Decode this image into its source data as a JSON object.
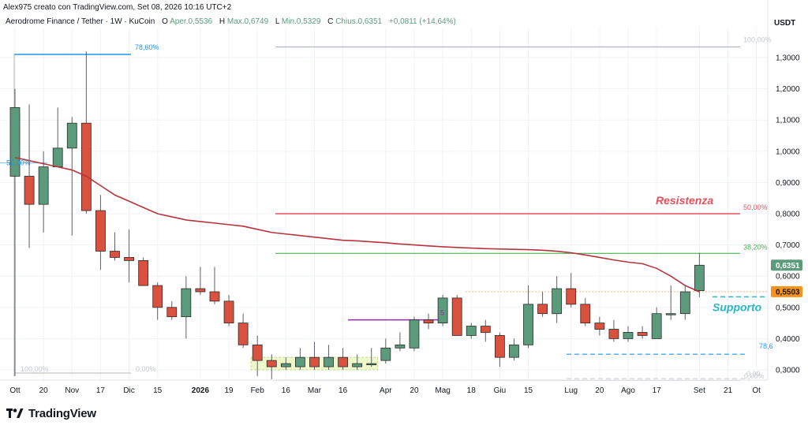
{
  "header": {
    "author_line": "Alex975 creato con TradingView.com, Set 08, 2026 10:16 UTC+2",
    "symbol_line": "Aerodrome Finance / Tether · 1W · KuCoin",
    "ohlc": {
      "o_label": "O",
      "o_value": "Aper.0,5536",
      "h_label": "H",
      "h_value": "Max.0,6749",
      "l_label": "L",
      "l_value": "Min.0,5329",
      "c_label": "C",
      "c_value": "Chius.0,6351",
      "change": "+0,0811 (+14,64%)"
    },
    "currency": "USDT"
  },
  "logo": {
    "text": "TradingView",
    "icon": "tradingview-logo-icon"
  },
  "colors": {
    "up": "#5b9b7c",
    "down": "#d9513f",
    "ma": "#b7343d",
    "resistance": "#e8505b",
    "support_text": "#2ab6c5",
    "fib_green": "#4caf50",
    "fib_blue": "#2196f3",
    "price_badge": "#5b9b7c",
    "level_badge": "#f7931a"
  },
  "chart_data": {
    "type": "candlestick",
    "y_axis": {
      "min": 0.27,
      "max": 1.375,
      "ticks": [
        "1,3000",
        "1,2000",
        "1,1000",
        "1,0000",
        "0,9000",
        "0,8000",
        "0,7000",
        "0,6000",
        "0,5000",
        "0,4000",
        "0,3000"
      ],
      "tick_values": [
        1.3,
        1.2,
        1.1,
        1.0,
        0.9,
        0.8,
        0.7,
        0.6,
        0.5,
        0.4,
        0.3
      ]
    },
    "x_axis": {
      "labels": [
        {
          "text": "Ott",
          "week": 0,
          "bold": false
        },
        {
          "text": "20",
          "week": 2,
          "bold": false
        },
        {
          "text": "Nov",
          "week": 4,
          "bold": false
        },
        {
          "text": "17",
          "week": 6,
          "bold": false
        },
        {
          "text": "Dic",
          "week": 8,
          "bold": false
        },
        {
          "text": "15",
          "week": 10,
          "bold": false
        },
        {
          "text": "2026",
          "week": 13,
          "bold": true
        },
        {
          "text": "19",
          "week": 15,
          "bold": false
        },
        {
          "text": "Feb",
          "week": 17,
          "bold": false
        },
        {
          "text": "16",
          "week": 19,
          "bold": false
        },
        {
          "text": "Mar",
          "week": 21,
          "bold": false
        },
        {
          "text": "16",
          "week": 23,
          "bold": false
        },
        {
          "text": "Apr",
          "week": 26,
          "bold": false
        },
        {
          "text": "20",
          "week": 28,
          "bold": false
        },
        {
          "text": "Mag",
          "week": 30,
          "bold": false
        },
        {
          "text": "18",
          "week": 32,
          "bold": false
        },
        {
          "text": "Giu",
          "week": 34,
          "bold": false
        },
        {
          "text": "15",
          "week": 36,
          "bold": false
        },
        {
          "text": "Lug",
          "week": 39,
          "bold": false
        },
        {
          "text": "20",
          "week": 41,
          "bold": false
        },
        {
          "text": "Ago",
          "week": 43,
          "bold": false
        },
        {
          "text": "17",
          "week": 45,
          "bold": false
        },
        {
          "text": "Set",
          "week": 48,
          "bold": false
        },
        {
          "text": "21",
          "week": 50,
          "bold": false
        },
        {
          "text": "Ot",
          "week": 52,
          "bold": false
        }
      ]
    },
    "candles": [
      {
        "o": 0.92,
        "h": 1.2,
        "l": 0.28,
        "c": 1.14
      },
      {
        "o": 0.92,
        "h": 1.15,
        "l": 0.69,
        "c": 0.83
      },
      {
        "o": 0.83,
        "h": 1.0,
        "l": 0.74,
        "c": 0.95
      },
      {
        "o": 0.95,
        "h": 1.14,
        "l": 0.95,
        "c": 1.01
      },
      {
        "o": 1.01,
        "h": 1.11,
        "l": 0.73,
        "c": 1.09
      },
      {
        "o": 1.09,
        "h": 1.32,
        "l": 0.8,
        "c": 0.81
      },
      {
        "o": 0.81,
        "h": 0.86,
        "l": 0.62,
        "c": 0.68
      },
      {
        "o": 0.68,
        "h": 0.74,
        "l": 0.65,
        "c": 0.66
      },
      {
        "o": 0.66,
        "h": 0.75,
        "l": 0.58,
        "c": 0.65
      },
      {
        "o": 0.65,
        "h": 0.66,
        "l": 0.57,
        "c": 0.57
      },
      {
        "o": 0.57,
        "h": 0.58,
        "l": 0.46,
        "c": 0.5
      },
      {
        "o": 0.5,
        "h": 0.52,
        "l": 0.46,
        "c": 0.47
      },
      {
        "o": 0.47,
        "h": 0.6,
        "l": 0.4,
        "c": 0.56
      },
      {
        "o": 0.56,
        "h": 0.63,
        "l": 0.54,
        "c": 0.55
      },
      {
        "o": 0.55,
        "h": 0.63,
        "l": 0.51,
        "c": 0.52
      },
      {
        "o": 0.52,
        "h": 0.54,
        "l": 0.44,
        "c": 0.45
      },
      {
        "o": 0.45,
        "h": 0.48,
        "l": 0.37,
        "c": 0.38
      },
      {
        "o": 0.38,
        "h": 0.41,
        "l": 0.28,
        "c": 0.33
      },
      {
        "o": 0.33,
        "h": 0.35,
        "l": 0.27,
        "c": 0.31
      },
      {
        "o": 0.31,
        "h": 0.34,
        "l": 0.3,
        "c": 0.32
      },
      {
        "o": 0.31,
        "h": 0.37,
        "l": 0.3,
        "c": 0.34
      },
      {
        "o": 0.34,
        "h": 0.39,
        "l": 0.3,
        "c": 0.31
      },
      {
        "o": 0.31,
        "h": 0.38,
        "l": 0.3,
        "c": 0.34
      },
      {
        "o": 0.34,
        "h": 0.37,
        "l": 0.3,
        "c": 0.31
      },
      {
        "o": 0.31,
        "h": 0.35,
        "l": 0.3,
        "c": 0.32
      },
      {
        "o": 0.32,
        "h": 0.37,
        "l": 0.31,
        "c": 0.32
      },
      {
        "o": 0.33,
        "h": 0.4,
        "l": 0.32,
        "c": 0.37
      },
      {
        "o": 0.37,
        "h": 0.42,
        "l": 0.36,
        "c": 0.38
      },
      {
        "o": 0.37,
        "h": 0.47,
        "l": 0.36,
        "c": 0.46
      },
      {
        "o": 0.46,
        "h": 0.48,
        "l": 0.43,
        "c": 0.45
      },
      {
        "o": 0.45,
        "h": 0.54,
        "l": 0.44,
        "c": 0.53
      },
      {
        "o": 0.53,
        "h": 0.54,
        "l": 0.41,
        "c": 0.41
      },
      {
        "o": 0.41,
        "h": 0.45,
        "l": 0.4,
        "c": 0.44
      },
      {
        "o": 0.44,
        "h": 0.46,
        "l": 0.39,
        "c": 0.42
      },
      {
        "o": 0.41,
        "h": 0.42,
        "l": 0.31,
        "c": 0.34
      },
      {
        "o": 0.34,
        "h": 0.4,
        "l": 0.33,
        "c": 0.38
      },
      {
        "o": 0.38,
        "h": 0.57,
        "l": 0.37,
        "c": 0.51
      },
      {
        "o": 0.51,
        "h": 0.55,
        "l": 0.47,
        "c": 0.48
      },
      {
        "o": 0.48,
        "h": 0.6,
        "l": 0.45,
        "c": 0.56
      },
      {
        "o": 0.56,
        "h": 0.61,
        "l": 0.5,
        "c": 0.51
      },
      {
        "o": 0.51,
        "h": 0.53,
        "l": 0.44,
        "c": 0.45
      },
      {
        "o": 0.45,
        "h": 0.47,
        "l": 0.41,
        "c": 0.43
      },
      {
        "o": 0.43,
        "h": 0.46,
        "l": 0.39,
        "c": 0.4
      },
      {
        "o": 0.4,
        "h": 0.44,
        "l": 0.39,
        "c": 0.42
      },
      {
        "o": 0.42,
        "h": 0.44,
        "l": 0.4,
        "c": 0.41
      },
      {
        "o": 0.4,
        "h": 0.5,
        "l": 0.4,
        "c": 0.48
      },
      {
        "o": 0.48,
        "h": 0.57,
        "l": 0.46,
        "c": 0.48
      },
      {
        "o": 0.48,
        "h": 0.57,
        "l": 0.46,
        "c": 0.55
      },
      {
        "o": 0.5536,
        "h": 0.6749,
        "l": 0.5329,
        "c": 0.6351
      }
    ],
    "moving_average": [
      0.98,
      0.97,
      0.96,
      0.95,
      0.94,
      0.92,
      0.89,
      0.86,
      0.84,
      0.82,
      0.8,
      0.79,
      0.78,
      0.775,
      0.77,
      0.765,
      0.76,
      0.75,
      0.74,
      0.735,
      0.73,
      0.725,
      0.72,
      0.715,
      0.713,
      0.71,
      0.707,
      0.703,
      0.7,
      0.697,
      0.694,
      0.692,
      0.69,
      0.688,
      0.687,
      0.686,
      0.685,
      0.683,
      0.68,
      0.675,
      0.668,
      0.66,
      0.652,
      0.645,
      0.64,
      0.625,
      0.6,
      0.57,
      0.55
    ],
    "levels": {
      "resistance": {
        "price": 0.8,
        "label": "Resistenza",
        "fib_label": "50,00%"
      },
      "fib_382": {
        "price": 0.673,
        "label": "38,20%"
      },
      "fib_100_top": {
        "price": 1.334,
        "label": "100,00%"
      },
      "fib_0_bottom": {
        "price": 0.272,
        "label": "0,00%"
      },
      "support_dashed": {
        "price": 0.534,
        "label": "Supporto"
      },
      "level_5503": {
        "price": 0.5503,
        "label": "0,5503"
      },
      "blue_dashed": {
        "price": 0.35,
        "label": "78,6"
      },
      "left_fib_786": {
        "price": 1.31,
        "label": "78,60%"
      },
      "left_fib_50": {
        "price": 0.95,
        "label": "50,00%"
      },
      "left_fib_100": {
        "price": 0.285,
        "label": "100,00%"
      },
      "left_fib_0": {
        "price": 0.285,
        "label": "0,00%"
      },
      "purple_line": {
        "price": 0.46,
        "label": "5"
      },
      "right_zero_label": "0,00"
    },
    "current_price_badge": "0,6351",
    "zone_box": {
      "from_week": 17,
      "to_week": 25,
      "top": 0.34,
      "bottom": 0.3
    }
  }
}
